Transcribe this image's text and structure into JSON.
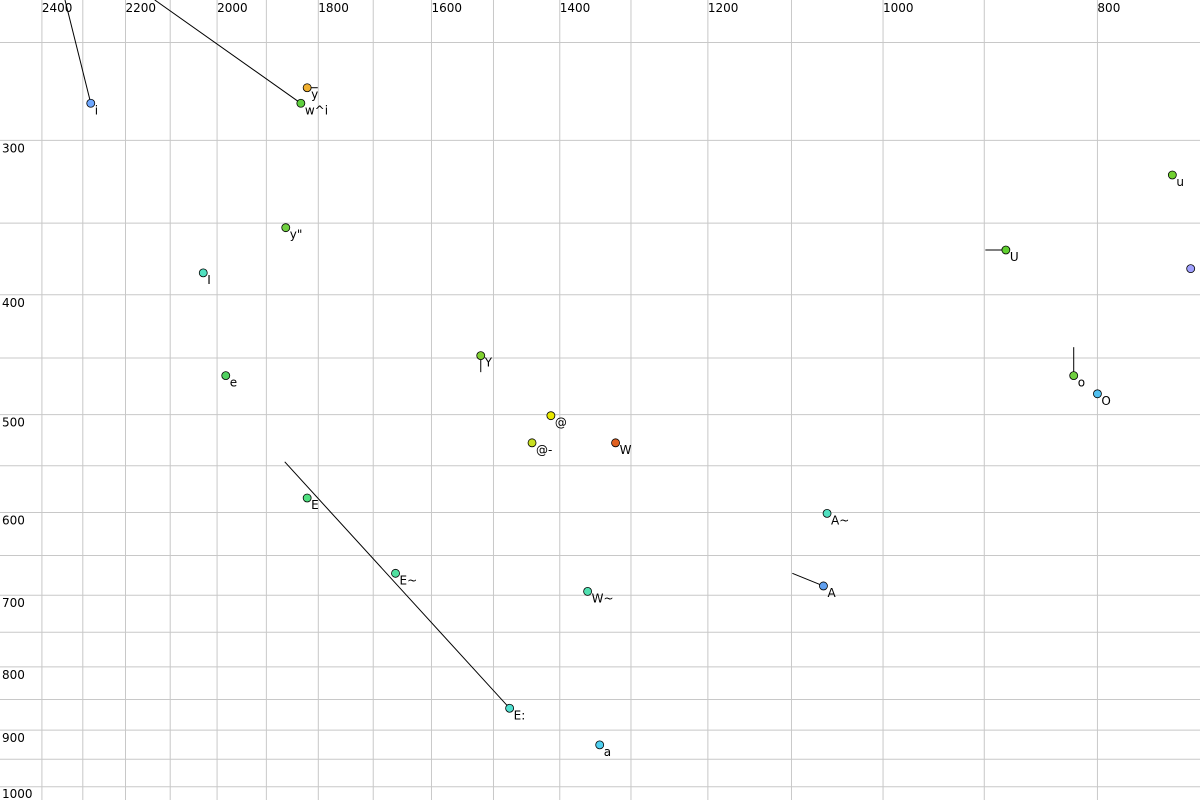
{
  "chart_data": {
    "type": "scatter",
    "xscale": "log",
    "yscale": "log",
    "xlim": [
      2507,
      719
    ],
    "ylim": [
      231,
      1025
    ],
    "xticks": [
      2400,
      2200,
      2000,
      1800,
      1600,
      1400,
      1200,
      1000,
      800
    ],
    "xminor": [
      2300,
      2100,
      1900,
      1700,
      1500,
      1300,
      1100,
      900
    ],
    "yticks": [
      300,
      400,
      500,
      600,
      700,
      800,
      900,
      1000
    ],
    "yminor": [
      250,
      350,
      450,
      550,
      650,
      750,
      850,
      950
    ],
    "grid": true,
    "points": [
      {
        "label": "i",
        "x": 2281,
        "y": 280,
        "color": "#6fa8ff",
        "tail": [
          2343,
          231
        ]
      },
      {
        "label": "y",
        "x": 1821,
        "y": 272,
        "color": "#f0b030",
        "tail": [
          1801,
          272
        ]
      },
      {
        "label": "w^i",
        "x": 1833,
        "y": 280,
        "color": "#60d040",
        "tail": [
          2134,
          231
        ]
      },
      {
        "label": "y\"",
        "x": 1862,
        "y": 353,
        "color": "#70d040"
      },
      {
        "label": "I",
        "x": 2029,
        "y": 384,
        "color": "#50e0c0"
      },
      {
        "label": "e",
        "x": 1982,
        "y": 465,
        "color": "#50d060"
      },
      {
        "label": "Y",
        "x": 1520,
        "y": 448,
        "color": "#80d030",
        "tail": [
          1520,
          462
        ]
      },
      {
        "label": "@",
        "x": 1413,
        "y": 501,
        "color": "#e8e800"
      },
      {
        "label": "@-",
        "x": 1441,
        "y": 527,
        "color": "#c8e020"
      },
      {
        "label": "W",
        "x": 1321,
        "y": 527,
        "color": "#e06020"
      },
      {
        "label": "E",
        "x": 1821,
        "y": 584,
        "color": "#50e080"
      },
      {
        "label": "E~",
        "x": 1661,
        "y": 672,
        "color": "#50e0a0"
      },
      {
        "label": "E:",
        "x": 1475,
        "y": 864,
        "color": "#50e0d0",
        "tail": [
          1864,
          546
        ]
      },
      {
        "label": "W~",
        "x": 1360,
        "y": 695,
        "color": "#50e0b0"
      },
      {
        "label": "a",
        "x": 1343,
        "y": 925,
        "color": "#50d0f0"
      },
      {
        "label": "A~",
        "x": 1060,
        "y": 601,
        "color": "#50e0c0"
      },
      {
        "label": "A",
        "x": 1064,
        "y": 688,
        "color": "#60a0f0",
        "tail": [
          1099,
          672
        ]
      },
      {
        "label": "U",
        "x": 880,
        "y": 368,
        "color": "#60d030",
        "tail": [
          899,
          368
        ]
      },
      {
        "label": "o",
        "x": 820,
        "y": 465,
        "color": "#70d040",
        "tail": [
          820,
          441
        ]
      },
      {
        "label": "O",
        "x": 800,
        "y": 481,
        "color": "#50c0f0"
      },
      {
        "label": "u",
        "x": 740,
        "y": 320,
        "color": "#70d030"
      },
      {
        "label": null,
        "x": 726,
        "y": 381,
        "color": "#a0a0ff"
      }
    ]
  }
}
